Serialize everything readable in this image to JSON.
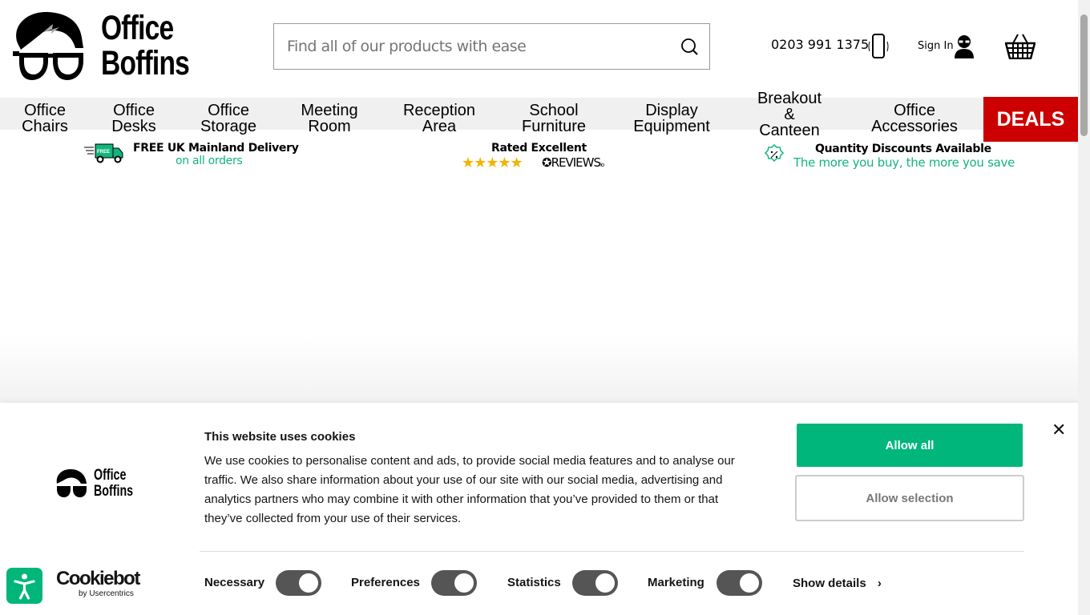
{
  "header": {
    "logo_text": "Office Boffins",
    "search_placeholder": "Find all of our products with ease",
    "phone": "0203 991 1375",
    "sign_in": "Sign In"
  },
  "nav": {
    "items": [
      {
        "line1": "Office",
        "line2": "Chairs"
      },
      {
        "line1": "Office",
        "line2": "Desks"
      },
      {
        "line1": "Office",
        "line2": "Storage"
      },
      {
        "line1": "Meeting",
        "line2": "Room"
      },
      {
        "line1": "Reception",
        "line2": "Area"
      },
      {
        "line1": "School",
        "line2": "Furniture"
      },
      {
        "line1": "Display",
        "line2": "Equipment"
      },
      {
        "line1": "Breakout",
        "line2": "&",
        "line3": "Canteen"
      },
      {
        "line1": "Office",
        "line2": "Accessories"
      }
    ],
    "deals": "DEALS",
    "deals_color": "#cc0000"
  },
  "usps": {
    "delivery_title": "FREE UK Mainland Delivery",
    "delivery_sub": "on all orders",
    "truck_badge": "FREE",
    "rating_title": "Rated Excellent",
    "reviews_brand": "REVIEWS",
    "reviews_suffix": "io",
    "stars": 5,
    "discount_title": "Quantity Discounts Available",
    "discount_sub": "The more you buy, the more you save",
    "accent": "#12b57b"
  },
  "cookie": {
    "title": "This website uses cookies",
    "text": "We use cookies to personalise content and ads, to provide social media features and to analyse our traffic. We also share information about your use of our site with our social media, advertising and analytics partners who may combine it with other information that you’ve provided to them or that they’ve collected from your use of their services.",
    "allow_all": "Allow all",
    "allow_selection": "Allow selection",
    "close": "✕",
    "toggles": [
      {
        "label": "Necessary",
        "on": true
      },
      {
        "label": "Preferences",
        "on": true
      },
      {
        "label": "Statistics",
        "on": true
      },
      {
        "label": "Marketing",
        "on": true
      }
    ],
    "show_details": "Show details",
    "cookiebot": "Cookiebot",
    "cookiebot_sub": "by Usercentrics",
    "logo_line1": "Office",
    "logo_line2": "Boffins"
  }
}
